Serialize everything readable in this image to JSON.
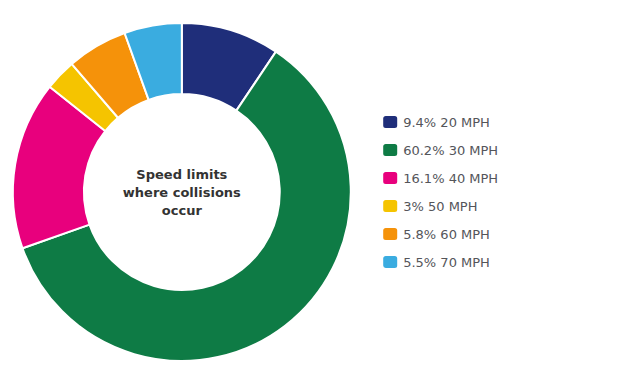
{
  "chart_data": {
    "type": "donut",
    "categories": [
      "9.4% 20 MPH",
      "60.2% 30 MPH",
      "16.1% 40 MPH",
      "3% 50 MPH",
      "5.8% 60 MPH",
      "5.5% 70 MPH"
    ],
    "values": [
      9.4,
      60.2,
      16.1,
      3.0,
      5.8,
      5.5
    ],
    "colors": [
      "#1f2e7a",
      "#0e7b45",
      "#e8007d",
      "#f5c400",
      "#f5920a",
      "#3aace0"
    ],
    "annotations": [
      "Speed limits",
      "where collisions",
      "occur"
    ],
    "legend": "right"
  }
}
